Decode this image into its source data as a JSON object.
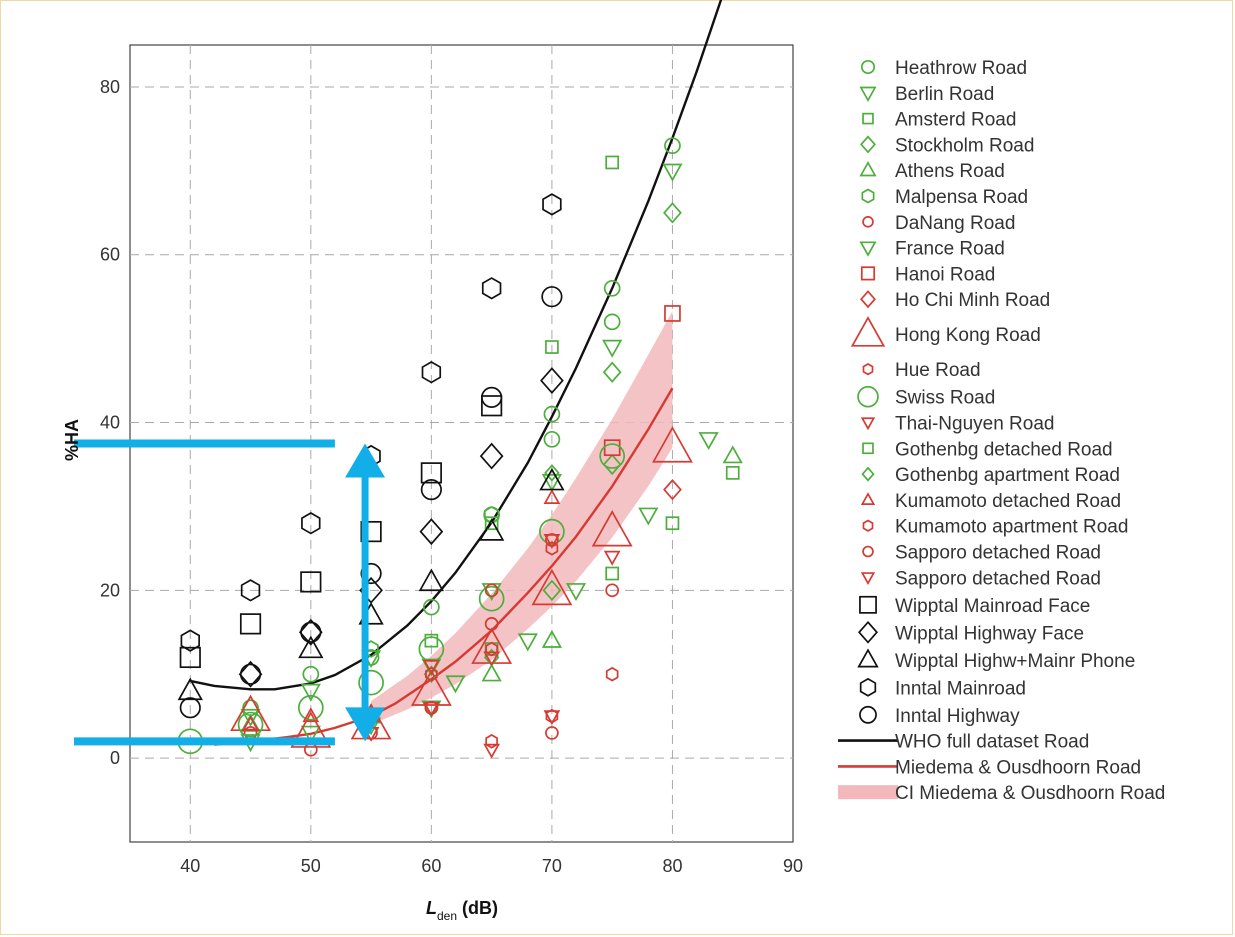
{
  "chart_data": {
    "type": "scatter",
    "xlabel_main": "L",
    "xlabel_sub": "den",
    "xlabel_unit": " (dB)",
    "ylabel": "%HA",
    "xlim": [
      35,
      90
    ],
    "ylim": [
      -10,
      85
    ],
    "xticks": [
      40,
      50,
      60,
      70,
      80,
      90
    ],
    "yticks": [
      0,
      20,
      40,
      60,
      80
    ],
    "grid": true,
    "legend_position": "right",
    "colors": {
      "green": "#4caf3c",
      "red": "#d63a32",
      "black": "#111111",
      "band": "#f2b8bc",
      "arrow": "#12aee8"
    },
    "series": [
      {
        "name": "Heathrow Road",
        "marker": "circle",
        "color": "green",
        "size": 1,
        "points": [
          [
            45,
            6
          ],
          [
            50,
            10
          ],
          [
            55,
            12
          ],
          [
            60,
            18
          ],
          [
            65,
            29
          ],
          [
            70,
            38
          ],
          [
            70,
            41
          ],
          [
            75,
            52
          ],
          [
            75,
            56
          ],
          [
            80,
            73
          ]
        ]
      },
      {
        "name": "Berlin Road",
        "marker": "tridown",
        "color": "green",
        "size": 1,
        "points": [
          [
            45,
            5
          ],
          [
            50,
            8
          ],
          [
            55,
            12
          ],
          [
            60,
            11
          ],
          [
            65,
            20
          ],
          [
            70,
            33
          ],
          [
            75,
            49
          ],
          [
            80,
            70
          ]
        ]
      },
      {
        "name": "Amsterd Road",
        "marker": "square",
        "color": "green",
        "size": 0.8,
        "points": [
          [
            65,
            28
          ],
          [
            70,
            49
          ],
          [
            75,
            71
          ],
          [
            85,
            34
          ]
        ]
      },
      {
        "name": "Stockholm Road",
        "marker": "diamond",
        "color": "green",
        "size": 1,
        "points": [
          [
            70,
            20
          ],
          [
            75,
            46
          ],
          [
            75,
            35
          ],
          [
            80,
            65
          ]
        ]
      },
      {
        "name": "Athens Road",
        "marker": "triup",
        "color": "green",
        "size": 1,
        "points": [
          [
            45,
            4
          ],
          [
            55,
            5
          ],
          [
            65,
            10
          ],
          [
            70,
            14
          ],
          [
            85,
            36
          ]
        ]
      },
      {
        "name": "Malpensa Road",
        "marker": "hexagon",
        "color": "green",
        "size": 1,
        "points": [
          [
            55,
            13
          ],
          [
            65,
            29
          ]
        ]
      },
      {
        "name": "DaNang Road",
        "marker": "circle",
        "color": "red",
        "size": 0.8,
        "points": [
          [
            45,
            3
          ],
          [
            50,
            1
          ],
          [
            55,
            3
          ],
          [
            60,
            6
          ],
          [
            65,
            16
          ],
          [
            70,
            3
          ]
        ]
      },
      {
        "name": "France Road",
        "marker": "tridown",
        "color": "green",
        "size": 1,
        "points": [
          [
            45,
            2
          ],
          [
            50,
            3
          ],
          [
            55,
            4
          ],
          [
            60,
            6
          ],
          [
            62,
            9
          ],
          [
            68,
            14
          ],
          [
            72,
            20
          ],
          [
            78,
            29
          ],
          [
            83,
            38
          ]
        ]
      },
      {
        "name": "Hanoi Road",
        "marker": "square",
        "color": "red",
        "size": 1,
        "points": [
          [
            75,
            37
          ],
          [
            80,
            53
          ]
        ]
      },
      {
        "name": "Ho Chi Minh Road",
        "marker": "diamond",
        "color": "red",
        "size": 1,
        "points": [
          [
            80,
            32
          ]
        ]
      },
      {
        "name": "Hong Kong Road",
        "marker": "triup",
        "color": "red",
        "size": 2.2,
        "points": [
          [
            45,
            5
          ],
          [
            50,
            3
          ],
          [
            55,
            4
          ],
          [
            60,
            8
          ],
          [
            65,
            13
          ],
          [
            70,
            20
          ],
          [
            75,
            27
          ],
          [
            80,
            37
          ]
        ]
      },
      {
        "name": "Hue Road",
        "marker": "hexagon",
        "color": "red",
        "size": 0.8,
        "points": [
          [
            65,
            2
          ],
          [
            70,
            5
          ],
          [
            75,
            10
          ]
        ]
      },
      {
        "name": "Swiss Road",
        "marker": "circle",
        "color": "green",
        "size": 1.6,
        "points": [
          [
            40,
            2
          ],
          [
            45,
            4
          ],
          [
            50,
            6
          ],
          [
            55,
            9
          ],
          [
            60,
            13
          ],
          [
            65,
            19
          ],
          [
            70,
            27
          ],
          [
            75,
            36
          ]
        ]
      },
      {
        "name": "Thai-Nguyen Road",
        "marker": "tridown",
        "color": "red",
        "size": 0.8,
        "points": [
          [
            60,
            11
          ],
          [
            65,
            1
          ],
          [
            70,
            26
          ],
          [
            75,
            24
          ]
        ]
      },
      {
        "name": "Gothenbg detached Road",
        "marker": "square",
        "color": "green",
        "size": 0.8,
        "points": [
          [
            60,
            14
          ],
          [
            65,
            13
          ],
          [
            75,
            22
          ],
          [
            80,
            28
          ]
        ]
      },
      {
        "name": "Gothenbg apartment Road",
        "marker": "diamond",
        "color": "green",
        "size": 0.8,
        "points": [
          [
            60,
            10
          ],
          [
            65,
            12
          ],
          [
            70,
            34
          ]
        ]
      },
      {
        "name": "Kumamoto detached Road",
        "marker": "triup",
        "color": "red",
        "size": 0.8,
        "points": [
          [
            45,
            4
          ],
          [
            50,
            5
          ],
          [
            55,
            5
          ],
          [
            70,
            31
          ]
        ]
      },
      {
        "name": "Kumamoto apartment Road",
        "marker": "hexagon",
        "color": "red",
        "size": 0.8,
        "points": [
          [
            60,
            10
          ],
          [
            65,
            13
          ],
          [
            70,
            25
          ]
        ]
      },
      {
        "name": "Sapporo detached Road",
        "marker": "circle",
        "color": "red",
        "size": 0.8,
        "points": [
          [
            60,
            6
          ],
          [
            65,
            20
          ],
          [
            70,
            26
          ],
          [
            75,
            20
          ]
        ]
      },
      {
        "name": "Sapporo detached Road",
        "marker": "tridown",
        "color": "red",
        "size": 0.8,
        "points": [
          [
            55,
            3
          ],
          [
            60,
            6
          ],
          [
            65,
            12
          ],
          [
            70,
            5
          ]
        ]
      },
      {
        "name": "Wipptal Mainroad Face",
        "marker": "square",
        "color": "black",
        "size": 1.3,
        "points": [
          [
            40,
            12
          ],
          [
            45,
            16
          ],
          [
            50,
            21
          ],
          [
            55,
            27
          ],
          [
            60,
            34
          ],
          [
            65,
            42
          ]
        ]
      },
      {
        "name": "Wipptal Highway Face",
        "marker": "diamond",
        "color": "black",
        "size": 1.3,
        "points": [
          [
            45,
            10
          ],
          [
            50,
            15
          ],
          [
            55,
            20
          ],
          [
            60,
            27
          ],
          [
            65,
            36
          ],
          [
            70,
            45
          ]
        ]
      },
      {
        "name": "Wipptal Highw+Mainr Phone",
        "marker": "triup",
        "color": "black",
        "size": 1.3,
        "points": [
          [
            40,
            8
          ],
          [
            50,
            13
          ],
          [
            55,
            17
          ],
          [
            60,
            21
          ],
          [
            65,
            27
          ],
          [
            70,
            33
          ]
        ]
      },
      {
        "name": "Inntal Mainroad",
        "marker": "hexagon",
        "color": "black",
        "size": 1.3,
        "points": [
          [
            40,
            14
          ],
          [
            45,
            20
          ],
          [
            50,
            28
          ],
          [
            55,
            36
          ],
          [
            60,
            46
          ],
          [
            65,
            56
          ],
          [
            70,
            66
          ]
        ]
      },
      {
        "name": "Inntal Highway",
        "marker": "circle",
        "color": "black",
        "size": 1.3,
        "points": [
          [
            40,
            6
          ],
          [
            45,
            10
          ],
          [
            50,
            15
          ],
          [
            55,
            22
          ],
          [
            60,
            32
          ],
          [
            65,
            43
          ],
          [
            70,
            55
          ]
        ]
      }
    ],
    "curves": [
      {
        "name": "WHO full dataset Road",
        "color": "black",
        "x": [
          40,
          42,
          45,
          47,
          50,
          52,
          55,
          58,
          60,
          62,
          65,
          68,
          70,
          72,
          75,
          78,
          80,
          82,
          85
        ],
        "y": [
          9.2,
          8.6,
          8.2,
          8.2,
          8.9,
          9.9,
          12.3,
          15.8,
          18.7,
          22.1,
          28.1,
          35.2,
          40.7,
          46.5,
          56.0,
          66.4,
          73.9,
          81.8,
          94.5
        ]
      },
      {
        "name": "Miedema & Ousdhoorn Road",
        "color": "red",
        "x": [
          42,
          45,
          48,
          50,
          52,
          55,
          57,
          60,
          62,
          65,
          68,
          70,
          72,
          75,
          78,
          80
        ],
        "y": [
          1.6,
          2.0,
          2.5,
          2.9,
          3.6,
          5.0,
          6.5,
          9.4,
          11.5,
          15.2,
          19.7,
          22.9,
          26.4,
          32.4,
          39.2,
          44.1
        ]
      },
      {
        "name": "CI Miedema & Ousdhoorn Road",
        "color": "band",
        "x": [
          55,
          58,
          60,
          62,
          65,
          68,
          70,
          72,
          75,
          78,
          80
        ],
        "y_low": [
          4.0,
          5.8,
          7.2,
          8.8,
          11.7,
          15.4,
          18.1,
          21.1,
          26.3,
          32.4,
          37.0
        ],
        "y_high": [
          6.8,
          9.8,
          12.2,
          14.9,
          19.6,
          25.0,
          29.0,
          33.4,
          40.4,
          48.1,
          53.3
        ]
      }
    ],
    "legend_order": [
      "Heathrow Road",
      "Berlin Road",
      "Amsterd Road",
      "Stockholm Road",
      "Athens Road",
      "Malpensa Road",
      "DaNang Road",
      "France Road",
      "Hanoi Road",
      "Ho Chi Minh Road",
      "Hong Kong Road",
      "Hue Road",
      "Swiss Road",
      "Thai-Nguyen Road",
      "Gothenbg detached Road",
      "Gothenbg apartment Road",
      "Kumamoto detached Road",
      "Kumamoto apartment Road",
      "Sapporo detached Road",
      "Sapporo detached Road",
      "Wipptal Mainroad Face",
      "Wipptal Highway Face",
      "Wipptal Highw+Mainr Phone",
      "Inntal Mainroad",
      "Inntal Highway",
      "WHO full dataset Road",
      "Miedema & Ousdhoorn Road",
      "CI Miedema & Ousdhoorn Road"
    ],
    "annotations": [
      {
        "type": "horizontal-line",
        "color": "arrow",
        "y": 37.5,
        "x_from": 30,
        "x_to": 52
      },
      {
        "type": "horizontal-line",
        "color": "arrow",
        "y": 2,
        "x_from": 30,
        "x_to": 52
      },
      {
        "type": "double-arrow",
        "color": "arrow",
        "x": 54.5,
        "y_from": 2,
        "y_to": 37.5
      }
    ]
  }
}
